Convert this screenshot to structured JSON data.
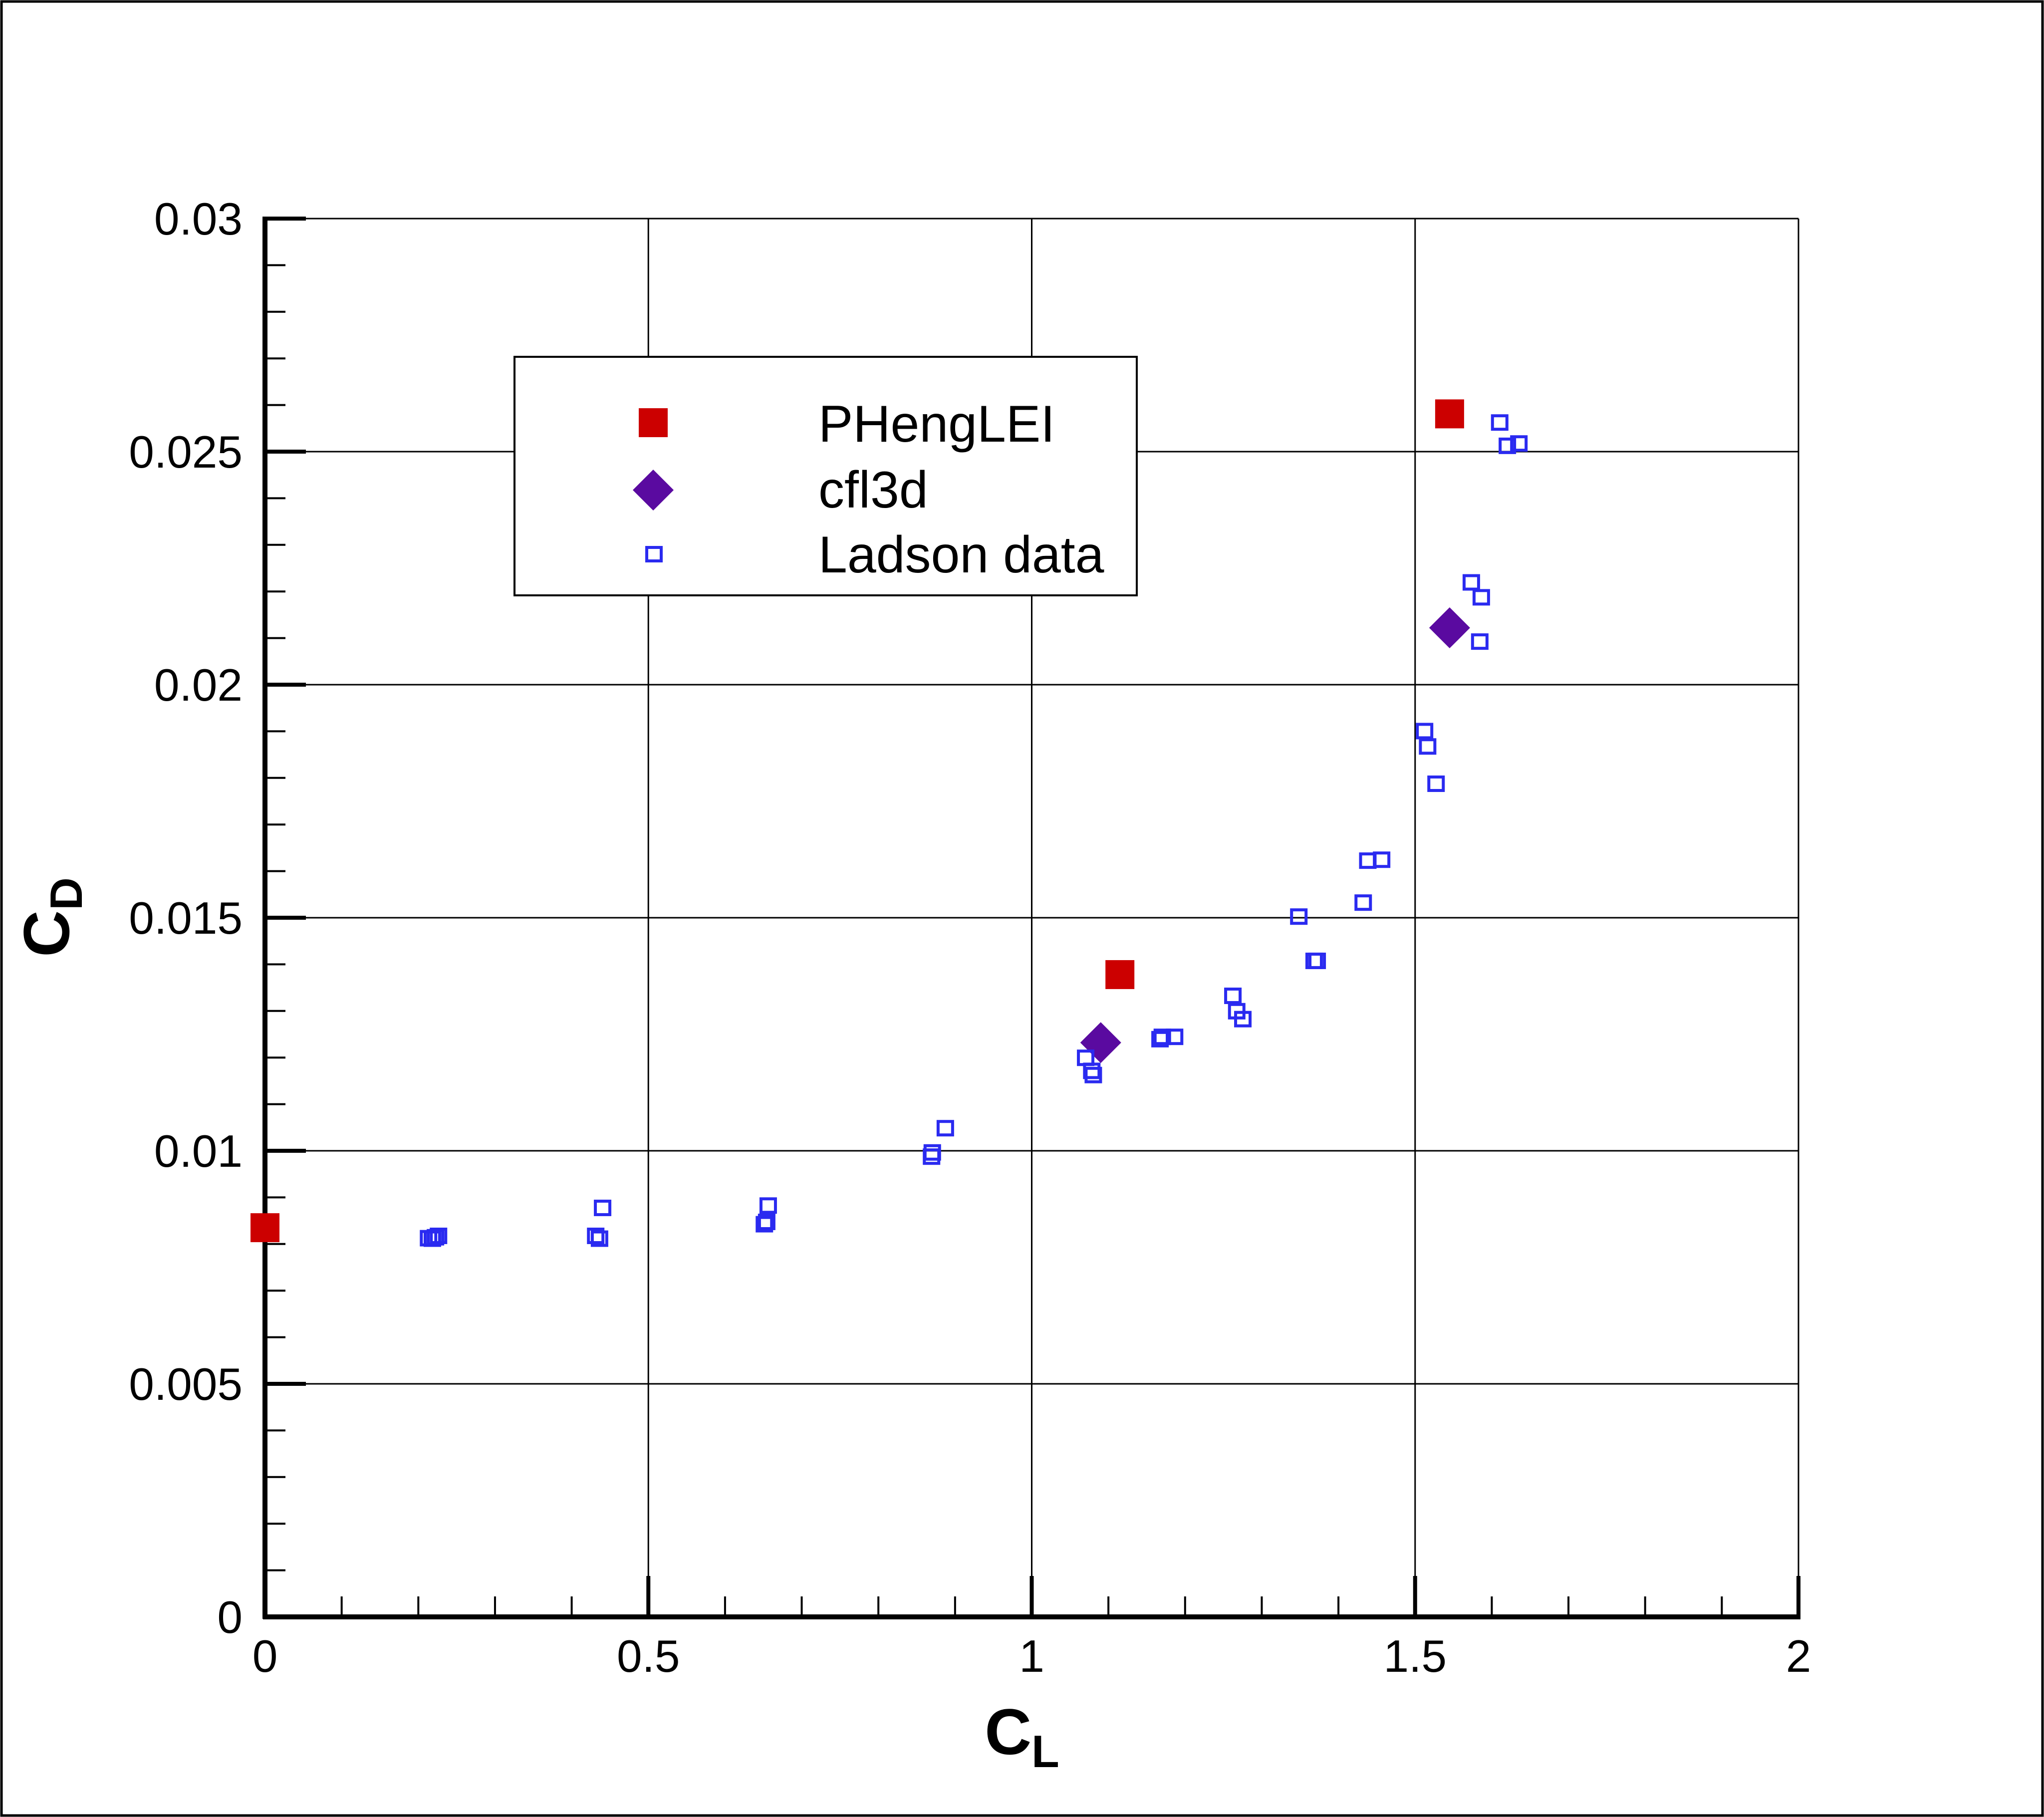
{
  "chart_data": {
    "type": "scatter",
    "title": "",
    "xlabel": {
      "main": "C",
      "sub": "L"
    },
    "ylabel": {
      "main": "C",
      "sub": "D"
    },
    "xlim": [
      0,
      2
    ],
    "ylim": [
      0,
      0.03
    ],
    "x_ticks": [
      0,
      0.5,
      1,
      1.5,
      2
    ],
    "x_tick_labels": [
      "0",
      "0.5",
      "1",
      "1.5",
      "2"
    ],
    "y_ticks": [
      0,
      0.005,
      0.01,
      0.015,
      0.02,
      0.025,
      0.03
    ],
    "y_tick_labels": [
      "0",
      "0.005",
      "0.01",
      "0.015",
      "0.02",
      "0.025",
      "0.03"
    ],
    "grid": true,
    "legend_position": "upper-left-center",
    "series": [
      {
        "name": "PHengLEI",
        "marker": "filled-square",
        "color": "#cc0000",
        "points": [
          [
            0.0,
            0.00835
          ],
          [
            1.115,
            0.01378
          ],
          [
            1.545,
            0.02581
          ]
        ]
      },
      {
        "name": "cfl3d",
        "marker": "filled-diamond",
        "color": "#5a0aa0",
        "points": [
          [
            1.09,
            0.01232
          ],
          [
            1.545,
            0.02122
          ]
        ]
      },
      {
        "name": "Ladson data",
        "marker": "open-square",
        "color": "#2a2af0",
        "points": [
          [
            0.213,
            0.00813
          ],
          [
            0.222,
            0.00815
          ],
          [
            0.226,
            0.00818
          ],
          [
            0.218,
            0.00812
          ],
          [
            0.431,
            0.00818
          ],
          [
            0.436,
            0.00812
          ],
          [
            0.44,
            0.00878
          ],
          [
            0.651,
            0.00843
          ],
          [
            0.654,
            0.00848
          ],
          [
            0.656,
            0.00883
          ],
          [
            0.869,
            0.00988
          ],
          [
            0.87,
            0.00997
          ],
          [
            0.887,
            0.01049
          ],
          [
            1.07,
            0.012
          ],
          [
            1.078,
            0.01172
          ],
          [
            1.08,
            0.01163
          ],
          [
            1.167,
            0.0124
          ],
          [
            1.17,
            0.01245
          ],
          [
            1.186,
            0.01245
          ],
          [
            1.262,
            0.01333
          ],
          [
            1.267,
            0.013
          ],
          [
            1.275,
            0.01283
          ],
          [
            1.348,
            0.01503
          ],
          [
            1.368,
            0.01408
          ],
          [
            1.372,
            0.01408
          ],
          [
            1.432,
            0.01533
          ],
          [
            1.438,
            0.01623
          ],
          [
            1.456,
            0.01625
          ],
          [
            1.512,
            0.01901
          ],
          [
            1.516,
            0.01868
          ],
          [
            1.527,
            0.01788
          ],
          [
            1.573,
            0.0222
          ],
          [
            1.584,
            0.02093
          ],
          [
            1.586,
            0.02188
          ],
          [
            1.61,
            0.02563
          ],
          [
            1.62,
            0.02513
          ],
          [
            1.635,
            0.02518
          ]
        ]
      }
    ]
  }
}
